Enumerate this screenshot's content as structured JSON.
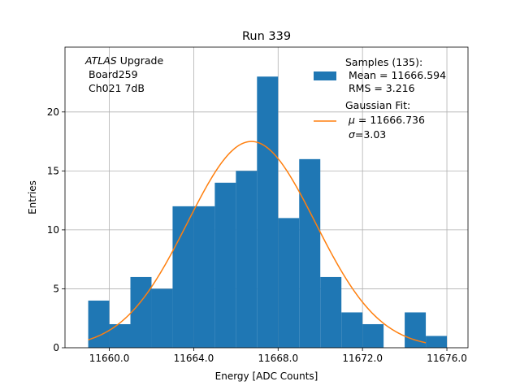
{
  "chart_data": {
    "type": "bar",
    "title": "Run 339",
    "xlabel": "Energy [ADC Counts]",
    "ylabel": "Entries",
    "xlim": [
      11657.9,
      11677.0
    ],
    "ylim": [
      0,
      25.5
    ],
    "grid": true,
    "xticks": [
      11660.0,
      11664.0,
      11668.0,
      11672.0,
      11676.0
    ],
    "xtick_labels": [
      "11660.0",
      "11664.0",
      "11668.0",
      "11672.0",
      "11676.0"
    ],
    "yticks": [
      0,
      5,
      10,
      15,
      20
    ],
    "ytick_labels": [
      "0",
      "5",
      "10",
      "15",
      "20"
    ],
    "bin_edges": [
      11659.0,
      11660.0,
      11661.0,
      11662.0,
      11663.0,
      11664.0,
      11665.0,
      11666.0,
      11667.0,
      11668.0,
      11669.0,
      11670.0,
      11671.0,
      11672.0,
      11673.0,
      11674.0,
      11675.0,
      11676.0
    ],
    "counts": [
      4,
      2,
      6,
      5,
      12,
      12,
      14,
      15,
      23,
      11,
      16,
      6,
      3,
      2,
      0,
      3,
      1
    ],
    "fit": {
      "mu": 11666.736,
      "sigma": 3.03,
      "amplitude": 17.5,
      "x_range": [
        11659.0,
        11675.0
      ]
    },
    "colors": {
      "histogram": "#1f77b4",
      "fit": "#ff7f0e",
      "grid": "#b0b0b0"
    },
    "annotation": {
      "italic": "ATLAS",
      "rest": " Upgrade",
      "line2": " Board259",
      "line3": " Ch021 7dB"
    },
    "legend": {
      "placement": "top-right",
      "samples": {
        "title": "Samples (135):",
        "mean": " Mean = 11666.594",
        "rms": " RMS = 3.216"
      },
      "fit": {
        "title": "Gaussian Fit:",
        "mu_symbol": "μ",
        "mu_text": " = 11666.736",
        "sigma_symbol": "σ",
        "sigma_text": "=3.03"
      }
    }
  }
}
